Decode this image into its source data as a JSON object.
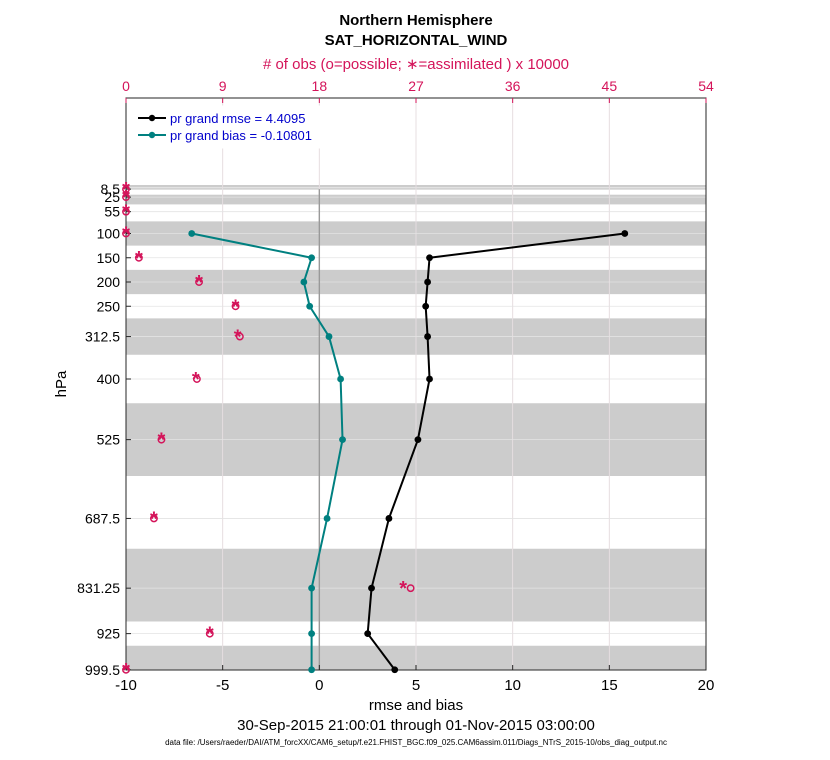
{
  "chart_data": {
    "type": "line",
    "title": "Northern Hemisphere",
    "subtitle": "SAT_HORIZONTAL_WIND",
    "top_axis_label": "# of obs (o=possible; ∗=assimilated ) x 10000",
    "top_axis_ticks": [
      "0",
      "9",
      "18",
      "27",
      "36",
      "45",
      "54"
    ],
    "top_axis_range": [
      0,
      54
    ],
    "xlabel": "rmse and bias",
    "xlim": [
      -10,
      20
    ],
    "x_ticks": [
      "-10",
      "-5",
      "0",
      "5",
      "10",
      "15",
      "20"
    ],
    "ylabel": "hPa",
    "y_ticks": [
      "8.5",
      "25",
      "55",
      "100",
      "150",
      "200",
      "250",
      "312.5",
      "400",
      "525",
      "687.5",
      "831.25",
      "925",
      "999.5"
    ],
    "levels": [
      100,
      150,
      200,
      250,
      312.5,
      400,
      525,
      687.5,
      831.25,
      925,
      999.5
    ],
    "layer_bands": [
      [
        0,
        2
      ],
      [
        5,
        10
      ],
      [
        20,
        40
      ],
      [
        75,
        125
      ],
      [
        175,
        225
      ],
      [
        275,
        350
      ],
      [
        450,
        600
      ],
      [
        750,
        900
      ],
      [
        950,
        1000
      ]
    ],
    "grid": true,
    "legend_position": "top-left",
    "series": [
      {
        "name": "pr grand rmse = 4.4095",
        "color": "#000000",
        "values": [
          15.8,
          5.7,
          5.6,
          5.5,
          5.6,
          5.7,
          5.1,
          3.6,
          2.7,
          2.5,
          3.9
        ]
      },
      {
        "name": "pr grand bias = -0.10801",
        "color": "#008080",
        "values": [
          -6.6,
          -0.4,
          -0.8,
          -0.5,
          0.5,
          1.1,
          1.2,
          0.4,
          -0.4,
          -0.4,
          -0.4
        ]
      }
    ],
    "obs_possible": {
      "marker": "o",
      "color": "#d4145a",
      "levels": [
        8.5,
        25,
        55,
        100,
        150,
        200,
        250,
        312.5,
        400,
        525,
        687.5,
        831.25,
        925,
        999.5
      ],
      "values": [
        0,
        0,
        0,
        0,
        1.2,
        6.8,
        10.2,
        10.6,
        6.6,
        3.3,
        2.6,
        26.5,
        7.8,
        0
      ]
    },
    "obs_assimilated": {
      "marker": "*",
      "color": "#d4145a",
      "levels": [
        8.5,
        25,
        55,
        100,
        150,
        200,
        250,
        312.5,
        400,
        525,
        687.5,
        831.25,
        925,
        999.5
      ],
      "values": [
        0,
        0,
        0,
        0,
        1.2,
        6.8,
        10.2,
        10.4,
        6.5,
        3.3,
        2.6,
        25.8,
        7.8,
        0
      ]
    },
    "date_range": "30-Sep-2015 21:00:01 through 01-Nov-2015 03:00:00",
    "footer": "data file: /Users/raeder/DAI/ATM_forcXX/CAM6_setup/f.e21.FHIST_BGC.f09_025.CAM6assim.011/Diags_NTrS_2015-10/obs_diag_output.nc"
  }
}
